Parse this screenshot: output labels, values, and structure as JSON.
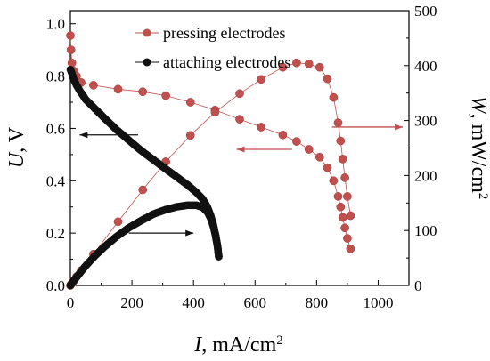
{
  "chart_data": {
    "type": "scatter",
    "x_axis": {
      "label_var": "I",
      "label_unit": ", mA/cm",
      "label_sup": "2",
      "range": [
        0,
        1100
      ],
      "ticks": [
        0,
        200,
        400,
        600,
        800,
        1000
      ],
      "tick_labels": [
        "0",
        "200",
        "400",
        "600",
        "800",
        "1000"
      ]
    },
    "y_left": {
      "label_var": "U",
      "label_unit": ", V",
      "range": [
        0,
        1.05
      ],
      "ticks": [
        0,
        0.2,
        0.4,
        0.6,
        0.8,
        1.0
      ],
      "tick_labels": [
        "0.0",
        "0.2",
        "0.4",
        "0.6",
        "0.8",
        "1.0"
      ]
    },
    "y_right": {
      "label_var": "W",
      "label_unit": ", mW/cm",
      "label_sup": "2",
      "range": [
        0,
        500
      ],
      "ticks": [
        0,
        100,
        200,
        300,
        400,
        500
      ],
      "tick_labels": [
        "0",
        "100",
        "200",
        "300",
        "400",
        "500"
      ]
    },
    "legend": {
      "position": "top",
      "entries": [
        {
          "label": "pressing electrodes",
          "series": "pressing"
        },
        {
          "label": "attaching electrodes",
          "series": "attaching"
        }
      ]
    },
    "series": [
      {
        "id": "pressing_voltage",
        "group": "pressing",
        "axis": "left",
        "color": "#c0504d",
        "x": [
          0,
          2,
          5,
          10,
          20,
          35,
          75,
          155,
          235,
          310,
          390,
          470,
          550,
          620,
          690,
          735,
          775,
          810,
          835,
          855,
          870,
          878,
          885,
          892,
          900,
          910
        ],
        "y": [
          0.955,
          0.9,
          0.85,
          0.82,
          0.8,
          0.775,
          0.765,
          0.75,
          0.74,
          0.725,
          0.7,
          0.67,
          0.635,
          0.605,
          0.575,
          0.55,
          0.52,
          0.49,
          0.45,
          0.4,
          0.34,
          0.3,
          0.26,
          0.22,
          0.18,
          0.14
        ]
      },
      {
        "id": "pressing_power",
        "group": "pressing",
        "axis": "right",
        "color": "#c0504d",
        "x": [
          0,
          2,
          5,
          10,
          20,
          35,
          75,
          155,
          235,
          310,
          390,
          470,
          550,
          620,
          690,
          735,
          775,
          810,
          835,
          855,
          870,
          878,
          885,
          892,
          900,
          910
        ],
        "y": [
          0,
          2,
          4,
          8,
          16,
          27,
          57,
          116,
          174,
          225,
          273,
          315,
          349,
          375,
          397,
          405,
          403,
          397,
          376,
          342,
          296,
          263,
          230,
          196,
          162,
          127
        ]
      },
      {
        "id": "attaching_voltage",
        "group": "attaching",
        "axis": "left",
        "color": "#111111",
        "x": [
          0,
          5,
          10,
          20,
          30,
          50,
          80,
          110,
          150,
          190,
          230,
          270,
          310,
          345,
          380,
          410,
          430,
          445,
          455,
          465,
          472,
          478,
          482
        ],
        "y": [
          0.825,
          0.81,
          0.79,
          0.765,
          0.745,
          0.71,
          0.675,
          0.64,
          0.595,
          0.555,
          0.515,
          0.48,
          0.445,
          0.415,
          0.385,
          0.355,
          0.33,
          0.3,
          0.27,
          0.23,
          0.19,
          0.15,
          0.11
        ]
      },
      {
        "id": "attaching_power",
        "group": "attaching",
        "axis": "right",
        "color": "#111111",
        "x": [
          0,
          5,
          10,
          20,
          30,
          50,
          80,
          110,
          150,
          190,
          230,
          270,
          310,
          345,
          380,
          410,
          430,
          445,
          455,
          465,
          472,
          478,
          482
        ],
        "y": [
          0,
          4,
          8,
          15,
          22,
          36,
          54,
          70,
          89,
          105,
          118,
          130,
          138,
          143,
          146,
          146,
          142,
          134,
          123,
          107,
          90,
          72,
          53
        ]
      }
    ],
    "annotations": [
      {
        "type": "arrow",
        "direction": "left",
        "color": "#111111",
        "target_axis": "left",
        "data_x": [
          220,
          30
        ],
        "data_y": 0.575
      },
      {
        "type": "arrow",
        "direction": "right",
        "color": "#111111",
        "target_axis": "right",
        "data_x": [
          190,
          400
        ],
        "data_y": 0.2
      },
      {
        "type": "arrow",
        "direction": "left",
        "color": "#c0504d",
        "target_axis": "left",
        "data_x": [
          720,
          540
        ],
        "data_y": 0.52
      },
      {
        "type": "arrow",
        "direction": "right",
        "color": "#c0504d",
        "target_axis": "right",
        "data_x": [
          850,
          1080
        ],
        "data_y": 0.605
      }
    ]
  }
}
